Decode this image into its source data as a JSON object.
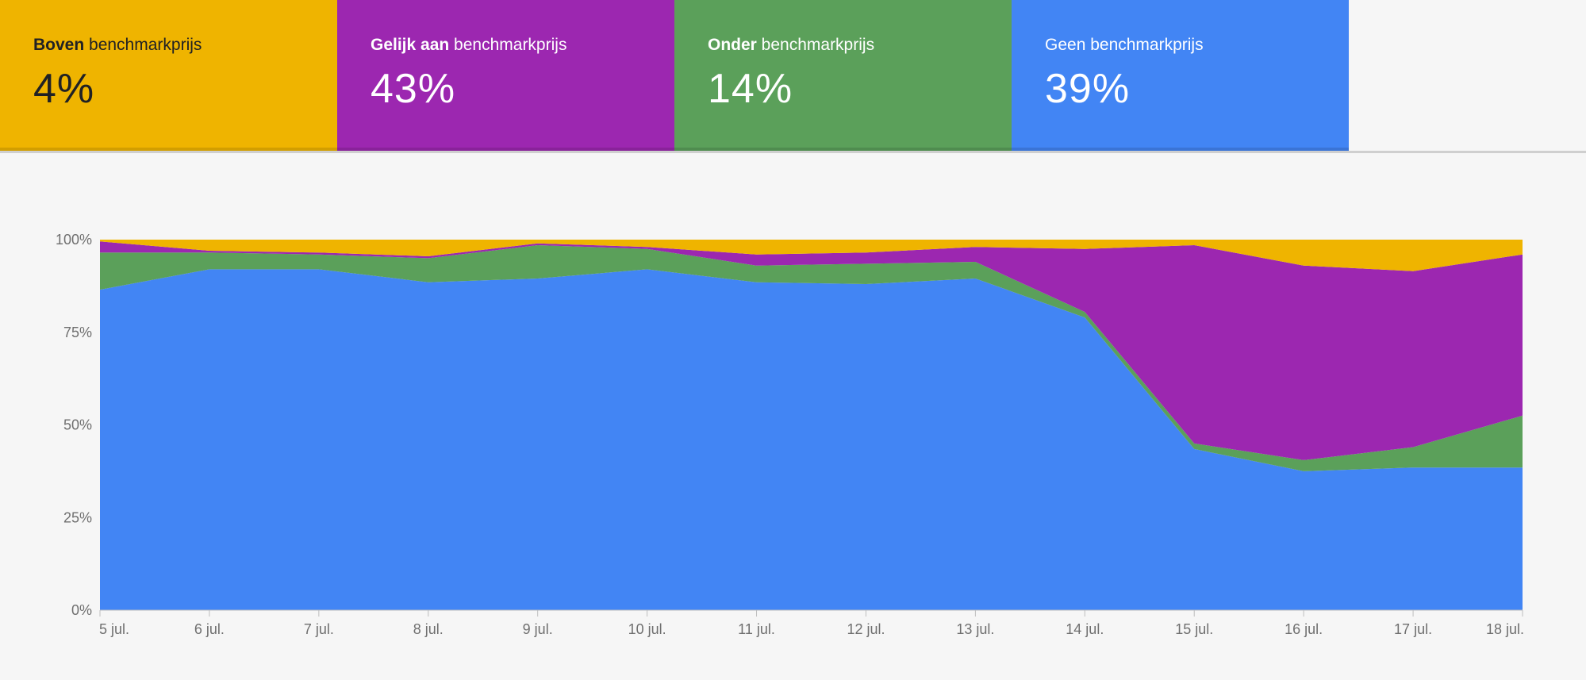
{
  "tiles": [
    {
      "bold": "Boven",
      "rest": " benchmarkprijs",
      "value": "4%",
      "color": "#efb400"
    },
    {
      "bold": "Gelijk aan",
      "rest": " benchmarkprijs",
      "value": "43%",
      "color": "#9c27b0"
    },
    {
      "bold": "Onder",
      "rest": " benchmarkprijs",
      "value": "14%",
      "color": "#5ba05a"
    },
    {
      "bold": "",
      "rest": "Geen benchmarkprijs",
      "value": "39%",
      "color": "#4285f4"
    }
  ],
  "chart_data": {
    "type": "area",
    "stacked": true,
    "categories": [
      "5 jul.",
      "6 jul.",
      "7 jul.",
      "8 jul.",
      "9 jul.",
      "10 jul.",
      "11 jul.",
      "12 jul.",
      "13 jul.",
      "14 jul.",
      "15 jul.",
      "16 jul.",
      "17 jul.",
      "18 jul."
    ],
    "ylim": [
      0,
      100
    ],
    "yticks": [
      "0%",
      "25%",
      "50%",
      "75%",
      "100%"
    ],
    "series": [
      {
        "key": "none",
        "color": "#4285f4",
        "values": [
          86.5,
          92,
          92,
          88.5,
          89.5,
          92,
          88.5,
          88,
          89.5,
          79,
          43.5,
          37.5,
          38.5,
          38.5
        ]
      },
      {
        "key": "below",
        "color": "#5ba05a",
        "values": [
          10,
          4.5,
          4,
          6.5,
          9,
          5.5,
          4.5,
          5.5,
          4.5,
          1.5,
          1.5,
          3,
          5.5,
          14
        ]
      },
      {
        "key": "equal",
        "color": "#9c27b0",
        "values": [
          3,
          0.5,
          0.5,
          0.5,
          0.5,
          0.5,
          3,
          3,
          4,
          17,
          53.5,
          52.5,
          47.5,
          43.5
        ]
      },
      {
        "key": "above",
        "color": "#efb400",
        "values": [
          0.5,
          3,
          3.5,
          4.5,
          1,
          2,
          4,
          3.5,
          2,
          2.5,
          1.5,
          7,
          8.5,
          4
        ]
      }
    ]
  }
}
